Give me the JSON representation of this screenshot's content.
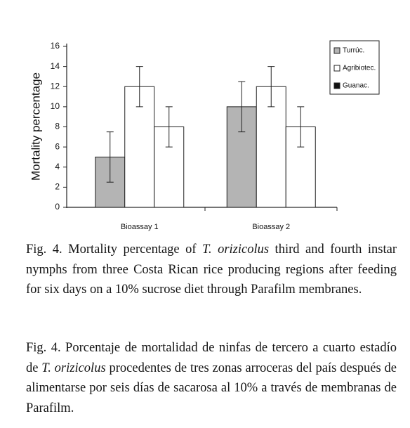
{
  "chart_data": {
    "type": "bar",
    "ylabel": "Mortality percentage",
    "categories": [
      "Bioassay 1",
      "Bioassay 2"
    ],
    "series": [
      {
        "name": "Turrúc.",
        "color": "#b4b4b4",
        "legend_color": "#b4b4b4",
        "values": [
          5,
          10
        ],
        "errors": [
          2.5,
          2.5
        ]
      },
      {
        "name": "Agribiotec.",
        "color": "#ffffff",
        "legend_color": "#ffffff",
        "values": [
          12,
          12
        ],
        "errors": [
          2,
          2
        ]
      },
      {
        "name": "Guanac.",
        "color": "#ffffff",
        "legend_color": "#111111",
        "values": [
          8,
          8
        ],
        "errors": [
          2,
          2
        ]
      }
    ],
    "ylim": [
      0,
      16
    ],
    "yticks": [
      0,
      2,
      4,
      6,
      8,
      10,
      12,
      14,
      16
    ],
    "grid": false,
    "legend": "upper right"
  },
  "captions": {
    "english": [
      "Fig. 4. Mortality percentage of ",
      "T. orizicolus",
      " third and fourth instar nymphs from three Costa Rican rice producing regions after feeding for six days on a 10% sucrose diet through Parafilm membranes."
    ],
    "spanish": [
      "Fig. 4. Porcentaje de mortalidad de ninfas de tercero a cuarto estadío de ",
      "T. orizicolus",
      " procedentes de tres zonas arroceras del país después de alimentarse por seis días de sacarosa al 10% a través de membranas de Parafilm."
    ]
  }
}
